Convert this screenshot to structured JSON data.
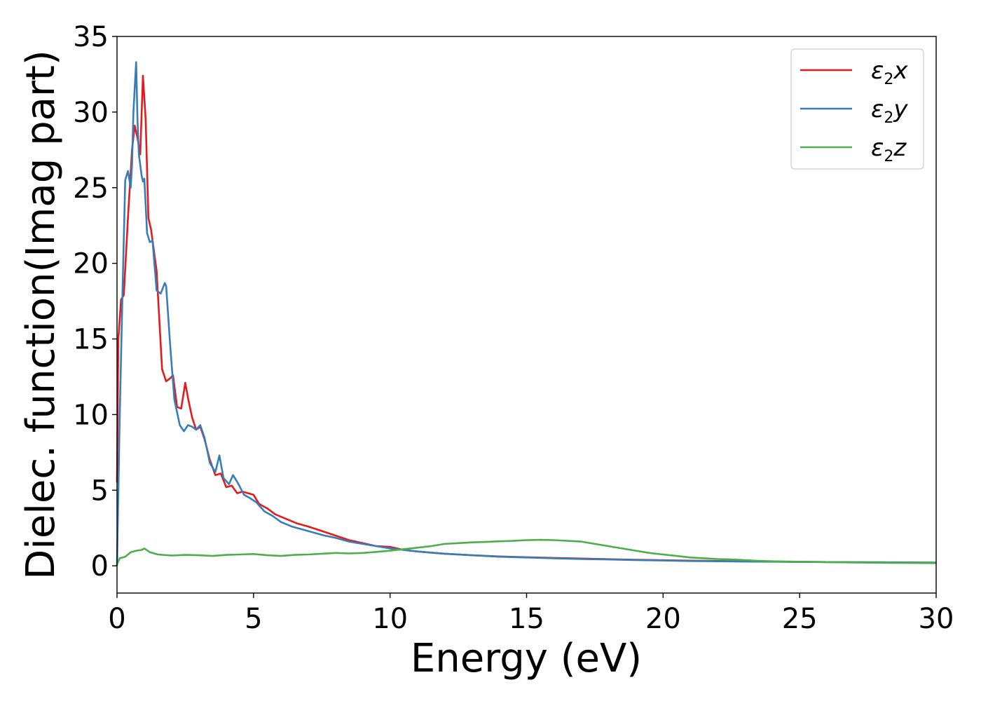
{
  "chart_data": {
    "type": "line",
    "title": "",
    "xlabel": "Energy (eV)",
    "ylabel": "Dielec. function(Imag part)",
    "xlim": [
      0,
      30
    ],
    "ylim": [
      -1.8,
      35
    ],
    "xticks": [
      0,
      5,
      10,
      15,
      20,
      25,
      30
    ],
    "xtick_labels": [
      "0",
      "5",
      "10",
      "15",
      "20",
      "25",
      "30"
    ],
    "yticks": [
      0,
      5,
      10,
      15,
      20,
      25,
      30,
      35
    ],
    "ytick_labels": [
      "0",
      "5",
      "10",
      "15",
      "20",
      "25",
      "30",
      "35"
    ],
    "grid": false,
    "legend_position": "top-right",
    "series": [
      {
        "name": "ε2x",
        "legend_base": "ε",
        "legend_sub": "2",
        "legend_tail": "x",
        "color": "#e41a1c",
        "x": [
          0,
          0.05,
          0.15,
          0.25,
          0.4,
          0.55,
          0.65,
          0.75,
          0.85,
          0.95,
          1.05,
          1.15,
          1.25,
          1.45,
          1.65,
          1.8,
          1.95,
          2.05,
          2.2,
          2.35,
          2.5,
          2.6,
          2.75,
          2.9,
          3.05,
          3.2,
          3.4,
          3.6,
          3.8,
          4.0,
          4.2,
          4.4,
          4.6,
          4.8,
          5.0,
          5.2,
          5.5,
          5.8,
          6.2,
          6.6,
          7.0,
          7.5,
          8.0,
          8.5,
          9.0,
          9.5,
          10.0,
          10.5,
          11.0,
          12.0,
          13.0,
          14.0,
          15.0,
          16.0,
          17.0,
          18.0,
          19.0,
          20.0,
          21.0,
          22.0,
          23.0,
          24.0,
          25.0,
          26.0,
          27.0,
          28.0,
          29.0,
          30.0
        ],
        "values": [
          5.5,
          15.0,
          17.6,
          17.9,
          23.0,
          27.5,
          29.1,
          28.3,
          27.2,
          32.4,
          29.5,
          23.0,
          22.2,
          19.5,
          13.0,
          12.2,
          12.4,
          12.6,
          10.5,
          10.4,
          12.1,
          11.1,
          9.8,
          9.0,
          9.2,
          8.4,
          7.0,
          6.0,
          6.1,
          5.2,
          5.3,
          4.8,
          4.9,
          4.8,
          4.7,
          4.1,
          3.8,
          3.4,
          3.1,
          2.8,
          2.6,
          2.3,
          2.0,
          1.7,
          1.5,
          1.3,
          1.25,
          1.05,
          0.95,
          0.8,
          0.7,
          0.62,
          0.57,
          0.52,
          0.48,
          0.44,
          0.4,
          0.37,
          0.34,
          0.32,
          0.3,
          0.28,
          0.26,
          0.25,
          0.24,
          0.23,
          0.22,
          0.2
        ]
      },
      {
        "name": "ε2y",
        "legend_base": "ε",
        "legend_sub": "2",
        "legend_tail": "y",
        "color": "#377eb8",
        "x": [
          0,
          0.1,
          0.2,
          0.3,
          0.4,
          0.5,
          0.55,
          0.6,
          0.7,
          0.75,
          0.8,
          0.9,
          0.95,
          1.0,
          1.1,
          1.2,
          1.3,
          1.45,
          1.6,
          1.75,
          1.8,
          1.95,
          2.1,
          2.3,
          2.45,
          2.6,
          2.75,
          2.9,
          3.05,
          3.2,
          3.4,
          3.6,
          3.75,
          3.9,
          4.1,
          4.25,
          4.45,
          4.65,
          4.85,
          5.1,
          5.4,
          5.7,
          6.0,
          6.4,
          6.8,
          7.2,
          7.6,
          8.0,
          8.5,
          9.0,
          9.5,
          10.0,
          10.5,
          11.0,
          12.0,
          13.0,
          14.0,
          15.0,
          16.0,
          17.0,
          18.0,
          19.0,
          20.0,
          21.0,
          22.0,
          23.0,
          24.0,
          25.0,
          26.0,
          27.0,
          28.0,
          29.0,
          30.0
        ],
        "values": [
          0,
          10.0,
          18.0,
          25.5,
          26.1,
          25.0,
          26.5,
          30.0,
          33.3,
          29.5,
          27.2,
          25.8,
          25.4,
          25.6,
          22.0,
          21.4,
          21.5,
          18.2,
          18.0,
          18.7,
          18.5,
          14.5,
          11.0,
          9.3,
          8.9,
          9.3,
          9.2,
          9.0,
          9.3,
          8.5,
          6.8,
          6.2,
          7.3,
          5.8,
          5.4,
          6.0,
          5.4,
          4.7,
          4.5,
          4.2,
          3.6,
          3.3,
          2.9,
          2.6,
          2.4,
          2.2,
          2.0,
          1.85,
          1.6,
          1.45,
          1.3,
          1.15,
          1.05,
          0.95,
          0.8,
          0.7,
          0.6,
          0.55,
          0.5,
          0.45,
          0.42,
          0.38,
          0.35,
          0.32,
          0.3,
          0.28,
          0.27,
          0.26,
          0.25,
          0.24,
          0.23,
          0.22,
          0.21
        ]
      },
      {
        "name": "ε2z",
        "legend_base": "ε",
        "legend_sub": "2",
        "legend_tail": "z",
        "color": "#4daf4a",
        "x": [
          0,
          0.1,
          0.3,
          0.5,
          0.7,
          0.9,
          1.0,
          1.2,
          1.5,
          2.0,
          2.5,
          3.0,
          3.5,
          4.0,
          4.5,
          5.0,
          5.5,
          6.0,
          6.5,
          7.0,
          7.5,
          8.0,
          8.5,
          9.0,
          9.5,
          10.0,
          10.5,
          11.0,
          11.5,
          12.0,
          12.5,
          13.0,
          13.5,
          14.0,
          14.5,
          15.0,
          15.5,
          16.0,
          16.5,
          17.0,
          17.5,
          18.0,
          18.5,
          19.0,
          19.5,
          20.0,
          20.5,
          21.0,
          21.5,
          22.0,
          22.5,
          23.0,
          23.5,
          24.0,
          25.0,
          26.0,
          27.0,
          28.0,
          29.0,
          30.0
        ],
        "values": [
          0.1,
          0.5,
          0.6,
          0.9,
          1.0,
          1.05,
          1.15,
          0.9,
          0.75,
          0.68,
          0.72,
          0.7,
          0.65,
          0.72,
          0.75,
          0.78,
          0.7,
          0.65,
          0.72,
          0.75,
          0.8,
          0.85,
          0.82,
          0.85,
          0.92,
          1.0,
          1.1,
          1.2,
          1.3,
          1.45,
          1.5,
          1.55,
          1.58,
          1.62,
          1.65,
          1.7,
          1.72,
          1.7,
          1.65,
          1.6,
          1.45,
          1.3,
          1.15,
          1.0,
          0.85,
          0.75,
          0.65,
          0.55,
          0.5,
          0.45,
          0.42,
          0.38,
          0.33,
          0.3,
          0.27,
          0.25,
          0.22,
          0.2,
          0.19,
          0.18
        ]
      }
    ]
  }
}
